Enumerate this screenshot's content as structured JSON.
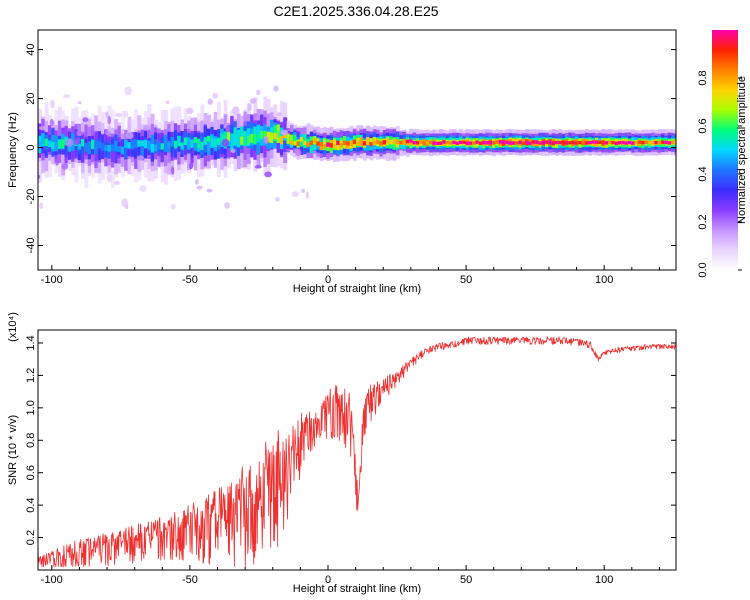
{
  "title": "C2E1.2025.336.04.28.E25",
  "colors": {
    "snr_line": "#ee3030",
    "colormap": [
      "#ffffff",
      "#ead4ff",
      "#c493ff",
      "#8a3cff",
      "#3b2cff",
      "#1f76ff",
      "#00d7ff",
      "#00ff7a",
      "#aaff00",
      "#ffd400",
      "#ff8000",
      "#ff2200",
      "#ff00aa"
    ]
  },
  "chart_data": [
    {
      "type": "heatmap",
      "xlabel": "Height of straight line (km)",
      "ylabel": "Frequency (Hz)",
      "xlim": [
        -105,
        126
      ],
      "ylim": [
        -50,
        48
      ],
      "xticks": [
        -100,
        -50,
        0,
        50,
        100
      ],
      "yticks": [
        -40,
        -20,
        0,
        20,
        40
      ],
      "colorbar": {
        "label": "Normalized spectral amplitude",
        "range": [
          0.0,
          1.0
        ],
        "ticks": [
          0.0,
          0.2,
          0.4,
          0.6,
          0.8
        ]
      },
      "ridge": {
        "x": [
          -105,
          -90,
          -75,
          -60,
          -45,
          -30,
          -20,
          -10,
          0,
          10,
          20,
          30,
          50,
          70,
          90,
          100,
          110,
          126
        ],
        "center_freq": [
          2,
          1,
          0,
          1,
          2,
          4,
          5,
          2,
          1,
          2,
          2,
          2,
          2,
          2,
          2,
          2,
          2,
          2
        ],
        "peak_amplitude": [
          0.55,
          0.5,
          0.45,
          0.5,
          0.55,
          0.6,
          0.7,
          0.8,
          0.9,
          0.9,
          0.85,
          0.9,
          0.95,
          1.0,
          0.95,
          0.95,
          0.9,
          0.9
        ]
      }
    },
    {
      "type": "line",
      "xlabel": "Height of straight line (km)",
      "ylabel": "SNR (10 * v/v)",
      "yscale_label": "(x10⁴)",
      "xlim": [
        -105,
        126
      ],
      "ylim": [
        0.0,
        1.48
      ],
      "xticks": [
        -100,
        -50,
        0,
        50,
        100
      ],
      "yticks": [
        0.2,
        0.4,
        0.6,
        0.8,
        1.0,
        1.2,
        1.4
      ],
      "series": [
        {
          "x": [
            -105,
            -100,
            -95,
            -90,
            -85,
            -80,
            -75,
            -70,
            -65,
            -60,
            -55,
            -50,
            -45,
            -40,
            -35,
            -30,
            -25,
            -20,
            -18,
            -15,
            -12,
            -10,
            -8,
            -5,
            -2,
            0,
            3,
            5,
            8,
            10,
            11,
            13,
            15,
            18,
            20,
            25,
            30,
            35,
            40,
            45,
            50,
            60,
            70,
            80,
            85,
            90,
            95,
            98,
            100,
            105,
            110,
            115,
            120,
            126
          ],
          "y": [
            0.05,
            0.08,
            0.1,
            0.12,
            0.14,
            0.15,
            0.17,
            0.19,
            0.21,
            0.22,
            0.24,
            0.27,
            0.3,
            0.33,
            0.37,
            0.42,
            0.48,
            0.55,
            0.6,
            0.66,
            0.75,
            0.82,
            0.85,
            0.9,
            0.95,
            1.0,
            1.02,
            1.05,
            0.95,
            0.62,
            0.4,
            1.0,
            1.05,
            1.1,
            1.13,
            1.2,
            1.28,
            1.35,
            1.38,
            1.4,
            1.42,
            1.42,
            1.42,
            1.42,
            1.42,
            1.41,
            1.39,
            1.3,
            1.34,
            1.36,
            1.37,
            1.38,
            1.38,
            1.38
          ],
          "noise_amplitude": [
            0.05,
            0.06,
            0.1,
            0.12,
            0.12,
            0.13,
            0.14,
            0.15,
            0.16,
            0.18,
            0.2,
            0.22,
            0.26,
            0.3,
            0.35,
            0.42,
            0.45,
            0.48,
            0.45,
            0.4,
            0.3,
            0.25,
            0.2,
            0.15,
            0.15,
            0.2,
            0.22,
            0.28,
            0.28,
            0.25,
            0.05,
            0.2,
            0.15,
            0.12,
            0.1,
            0.06,
            0.04,
            0.03,
            0.03,
            0.03,
            0.03,
            0.03,
            0.03,
            0.03,
            0.03,
            0.03,
            0.03,
            0.02,
            0.02,
            0.02,
            0.02,
            0.02,
            0.02,
            0.02
          ]
        }
      ]
    }
  ]
}
